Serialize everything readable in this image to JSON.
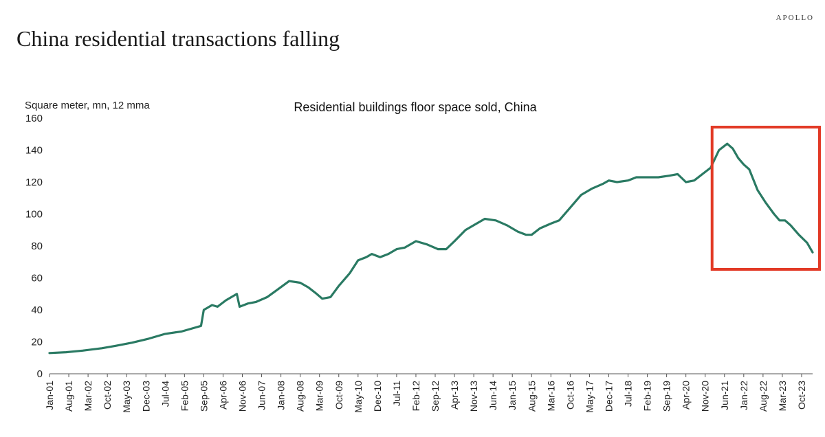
{
  "header": {
    "brand": "APOLLO",
    "title": "China residential transactions falling"
  },
  "colors": {
    "line": "#2a7a63",
    "highlight": "#e23a26",
    "axis": "#555555"
  },
  "chart_data": {
    "type": "line",
    "title": "Residential buildings floor space sold, China",
    "ylabel": "Square meter, mn, 12 mma",
    "xlabel": "",
    "ylim": [
      0,
      160
    ],
    "yticks": [
      0,
      20,
      40,
      60,
      80,
      100,
      120,
      140,
      160
    ],
    "x_start": "Jan-01",
    "x_end": "Feb-24",
    "x_tick_labels": [
      "Jan-01",
      "Aug-01",
      "Mar-02",
      "Oct-02",
      "May-03",
      "Dec-03",
      "Jul-04",
      "Feb-05",
      "Sep-05",
      "Apr-06",
      "Nov-06",
      "Jun-07",
      "Jan-08",
      "Aug-08",
      "Mar-09",
      "Oct-09",
      "May-10",
      "Dec-10",
      "Jul-11",
      "Feb-12",
      "Sep-12",
      "Apr-13",
      "Nov-13",
      "Jun-14",
      "Jan-15",
      "Aug-15",
      "Mar-16",
      "Oct-16",
      "May-17",
      "Dec-17",
      "Jul-18",
      "Feb-19",
      "Sep-19",
      "Apr-20",
      "Nov-20",
      "Jun-21",
      "Jan-22",
      "Aug-22",
      "Mar-23",
      "Oct-23"
    ],
    "series": [
      {
        "name": "Residential buildings floor space sold",
        "points": [
          [
            "Jan-01",
            13
          ],
          [
            "Jul-01",
            13.5
          ],
          [
            "Jan-02",
            14.5
          ],
          [
            "Aug-02",
            16
          ],
          [
            "Jan-03",
            17.5
          ],
          [
            "Jul-03",
            19.5
          ],
          [
            "Jan-04",
            22
          ],
          [
            "Jul-04",
            25
          ],
          [
            "Jan-05",
            26.5
          ],
          [
            "Jun-05",
            29
          ],
          [
            "Aug-05",
            30
          ],
          [
            "Sep-05",
            40
          ],
          [
            "Oct-05",
            41
          ],
          [
            "Dec-05",
            43
          ],
          [
            "Feb-06",
            42
          ],
          [
            "May-06",
            46
          ],
          [
            "Sep-06",
            50
          ],
          [
            "Oct-06",
            42
          ],
          [
            "Jan-07",
            44
          ],
          [
            "Apr-07",
            45
          ],
          [
            "Aug-07",
            48
          ],
          [
            "Dec-07",
            53
          ],
          [
            "Apr-08",
            58
          ],
          [
            "Aug-08",
            57
          ],
          [
            "Nov-08",
            54
          ],
          [
            "Feb-09",
            50
          ],
          [
            "Apr-09",
            47
          ],
          [
            "Jul-09",
            48
          ],
          [
            "Oct-09",
            55
          ],
          [
            "Feb-10",
            63
          ],
          [
            "May-10",
            71
          ],
          [
            "Aug-10",
            73
          ],
          [
            "Oct-10",
            75
          ],
          [
            "Jan-11",
            73
          ],
          [
            "Apr-11",
            75
          ],
          [
            "Jul-11",
            78
          ],
          [
            "Oct-11",
            79
          ],
          [
            "Feb-12",
            83
          ],
          [
            "Jun-12",
            81
          ],
          [
            "Oct-12",
            78
          ],
          [
            "Jan-13",
            78
          ],
          [
            "Apr-13",
            83
          ],
          [
            "Aug-13",
            90
          ],
          [
            "Nov-13",
            93
          ],
          [
            "Mar-14",
            97
          ],
          [
            "Jul-14",
            96
          ],
          [
            "Nov-14",
            93
          ],
          [
            "Mar-15",
            89
          ],
          [
            "Jun-15",
            87
          ],
          [
            "Aug-15",
            87
          ],
          [
            "Nov-15",
            91
          ],
          [
            "Mar-16",
            94
          ],
          [
            "Jun-16",
            96
          ],
          [
            "Oct-16",
            104
          ],
          [
            "Feb-17",
            112
          ],
          [
            "Jun-17",
            116
          ],
          [
            "Oct-17",
            119
          ],
          [
            "Dec-17",
            121
          ],
          [
            "Mar-18",
            120
          ],
          [
            "Jul-18",
            121
          ],
          [
            "Oct-18",
            123
          ],
          [
            "Feb-19",
            123
          ],
          [
            "Jun-19",
            123
          ],
          [
            "Oct-19",
            124
          ],
          [
            "Jan-20",
            125
          ],
          [
            "Apr-20",
            120
          ],
          [
            "Jul-20",
            121
          ],
          [
            "Oct-20",
            125
          ],
          [
            "Jan-21",
            129
          ],
          [
            "Apr-21",
            140
          ],
          [
            "Jul-21",
            144
          ],
          [
            "Sep-21",
            141
          ],
          [
            "Nov-21",
            135
          ],
          [
            "Jan-22",
            131
          ],
          [
            "Mar-22",
            128
          ],
          [
            "Jun-22",
            115
          ],
          [
            "Sep-22",
            107
          ],
          [
            "Dec-22",
            100
          ],
          [
            "Feb-23",
            96
          ],
          [
            "Apr-23",
            96
          ],
          [
            "Jun-23",
            93
          ],
          [
            "Sep-23",
            87
          ],
          [
            "Dec-23",
            82
          ],
          [
            "Feb-24",
            76
          ]
        ]
      }
    ],
    "highlight_region": {
      "from": "Mar-21",
      "to": "Feb-24"
    },
    "grid": false,
    "legend": "none"
  }
}
